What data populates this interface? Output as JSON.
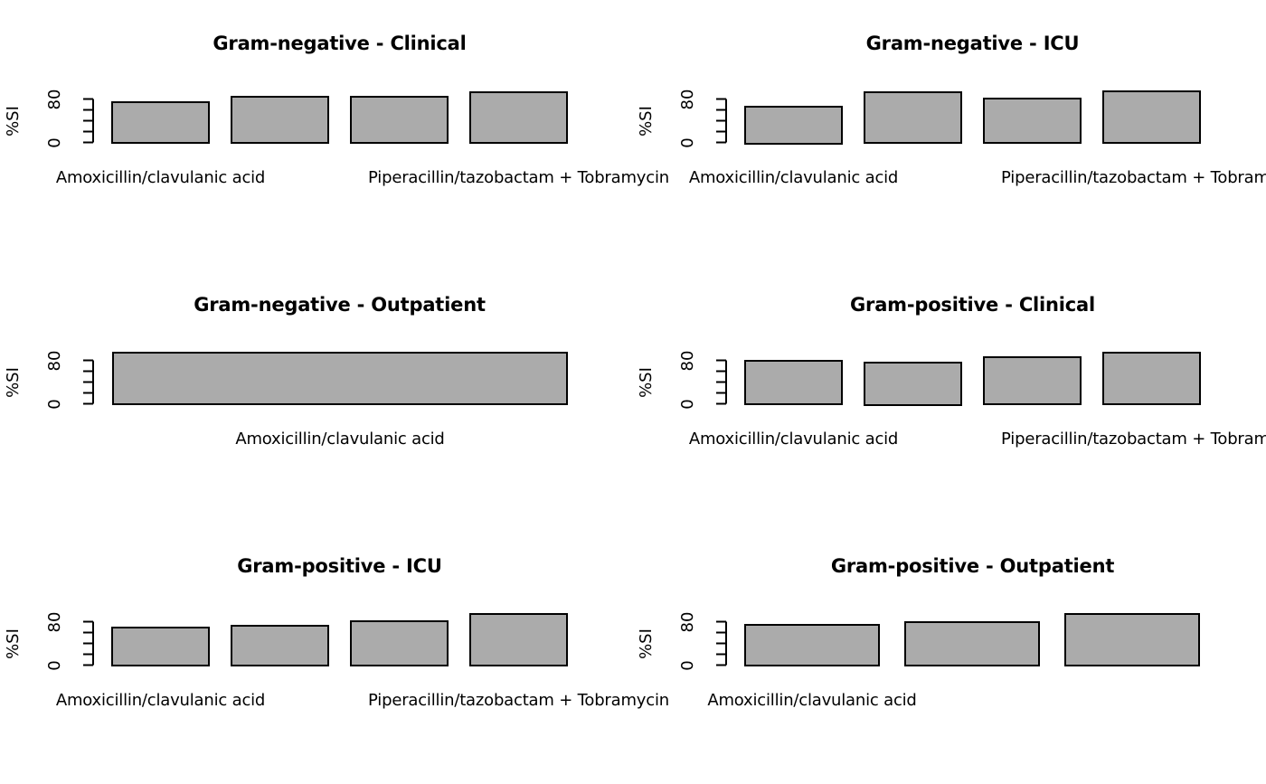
{
  "figure": {
    "background": "#ffffff",
    "bar_fill": "#ababab",
    "bar_border": "#000000",
    "text_color": "#000000",
    "grid_rows": 3,
    "grid_cols": 2
  },
  "chart_data": [
    {
      "type": "bar",
      "title": "Gram-negative - Clinical",
      "ylabel": "%SI",
      "ylim": [
        0,
        100
      ],
      "yticks": [
        0,
        20,
        40,
        60,
        80
      ],
      "ytick_labels_shown": [
        "0",
        "80"
      ],
      "grid": false,
      "legend": null,
      "position": {
        "row": 0,
        "col": 0
      },
      "values": [
        73,
        83,
        82,
        91
      ],
      "x_labels_shown": [
        {
          "text": "Amoxicillin/clavulanic acid",
          "bar_index": 0
        },
        {
          "text": "Piperacillin/tazobactam + Tobramycin",
          "bar_index": 3
        }
      ]
    },
    {
      "type": "bar",
      "title": "Gram-negative - ICU",
      "ylabel": "%SI",
      "ylim": [
        0,
        100
      ],
      "yticks": [
        0,
        20,
        40,
        60,
        80
      ],
      "ytick_labels_shown": [
        "0",
        "80"
      ],
      "grid": false,
      "legend": null,
      "position": {
        "row": 0,
        "col": 1
      },
      "values": [
        65,
        91,
        79,
        92
      ],
      "x_labels_shown": [
        {
          "text": "Amoxicillin/clavulanic acid",
          "bar_index": 0
        },
        {
          "text": "Piperacillin/tazobactam + Tobramycin",
          "bar_index": 3
        }
      ]
    },
    {
      "type": "bar",
      "title": "Gram-negative - Outpatient",
      "ylabel": "%SI",
      "ylim": [
        0,
        100
      ],
      "yticks": [
        0,
        20,
        40,
        60,
        80
      ],
      "ytick_labels_shown": [
        "0",
        "80"
      ],
      "grid": false,
      "legend": null,
      "position": {
        "row": 1,
        "col": 0
      },
      "values": [
        92
      ],
      "x_labels_shown": [
        {
          "text": "Amoxicillin/clavulanic acid",
          "bar_index": 0
        }
      ]
    },
    {
      "type": "bar",
      "title": "Gram-positive - Clinical",
      "ylabel": "%SI",
      "ylim": [
        0,
        100
      ],
      "yticks": [
        0,
        20,
        40,
        60,
        80
      ],
      "ytick_labels_shown": [
        "0",
        "80"
      ],
      "grid": false,
      "legend": null,
      "position": {
        "row": 1,
        "col": 1
      },
      "values": [
        77,
        75,
        84,
        93
      ],
      "x_labels_shown": [
        {
          "text": "Amoxicillin/clavulanic acid",
          "bar_index": 0
        },
        {
          "text": "Piperacillin/tazobactam + Tobramycin",
          "bar_index": 3
        }
      ]
    },
    {
      "type": "bar",
      "title": "Gram-positive - ICU",
      "ylabel": "%SI",
      "ylim": [
        0,
        100
      ],
      "yticks": [
        0,
        20,
        40,
        60,
        80
      ],
      "ytick_labels_shown": [
        "0",
        "80"
      ],
      "grid": false,
      "legend": null,
      "position": {
        "row": 2,
        "col": 0
      },
      "values": [
        67,
        71,
        79,
        92
      ],
      "x_labels_shown": [
        {
          "text": "Amoxicillin/clavulanic acid",
          "bar_index": 0
        },
        {
          "text": "Piperacillin/tazobactam + Tobramycin",
          "bar_index": 3
        }
      ]
    },
    {
      "type": "bar",
      "title": "Gram-positive - Outpatient",
      "ylabel": "%SI",
      "ylim": [
        0,
        100
      ],
      "yticks": [
        0,
        20,
        40,
        60,
        80
      ],
      "ytick_labels_shown": [
        "0",
        "80"
      ],
      "grid": false,
      "legend": null,
      "position": {
        "row": 2,
        "col": 1
      },
      "values": [
        73,
        78,
        92
      ],
      "x_labels_shown": [
        {
          "text": "Amoxicillin/clavulanic acid",
          "bar_index": 0
        }
      ]
    }
  ]
}
